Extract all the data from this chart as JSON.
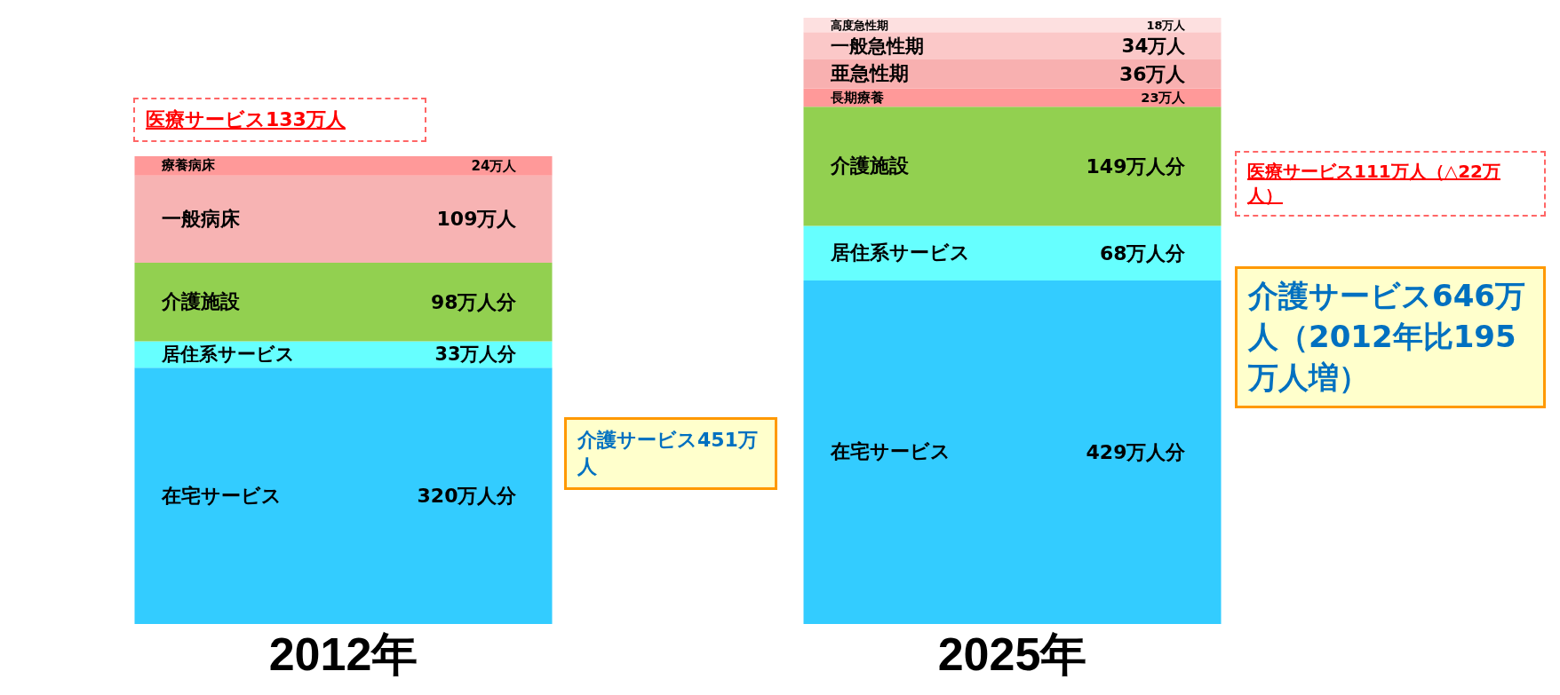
{
  "chart_data": {
    "type": "bar",
    "stacked": true,
    "legend": false,
    "data_labels": false,
    "categories": [
      "2012年",
      "2025年"
    ],
    "series": [
      {
        "name": "在宅サービス",
        "color": "#33ccff",
        "values": [
          320,
          429
        ],
        "value_labels": [
          "320万人分",
          "429万人分"
        ]
      },
      {
        "name": "居住系サービス",
        "color": "#66ffff",
        "values": [
          33,
          68
        ],
        "value_labels": [
          "33万人分",
          "68万人分"
        ]
      },
      {
        "name": "介護施設",
        "color": "#92d050",
        "values": [
          98,
          149
        ],
        "value_labels": [
          "98万人分",
          "149万人分"
        ]
      },
      {
        "name": "一般病床",
        "color": "#f7b3b3",
        "values": [
          109,
          null
        ],
        "value_labels": [
          "109万人",
          null
        ]
      },
      {
        "name": "療養病床",
        "color": "#ff9999",
        "values": [
          24,
          null
        ],
        "value_labels": [
          "24万人",
          null
        ]
      },
      {
        "name": "長期療養",
        "color": "#ff9999",
        "values": [
          null,
          23
        ],
        "value_labels": [
          null,
          "23万人"
        ]
      },
      {
        "name": "亜急性期",
        "color": "#f8b0b0",
        "values": [
          null,
          36
        ],
        "value_labels": [
          null,
          "36万人"
        ]
      },
      {
        "name": "一般急性期",
        "color": "#fbc8c8",
        "values": [
          null,
          34
        ],
        "value_labels": [
          null,
          "34万人"
        ]
      },
      {
        "name": "高度急性期",
        "color": "#fde0e0",
        "values": [
          null,
          18
        ],
        "value_labels": [
          null,
          "18万人"
        ]
      }
    ],
    "annotations": [
      "医療サービス133万人",
      "介護サービス451万人",
      "医療サービス111万人（△22万人）",
      "介護サービス646万人（2012年比195万人増）"
    ]
  }
}
